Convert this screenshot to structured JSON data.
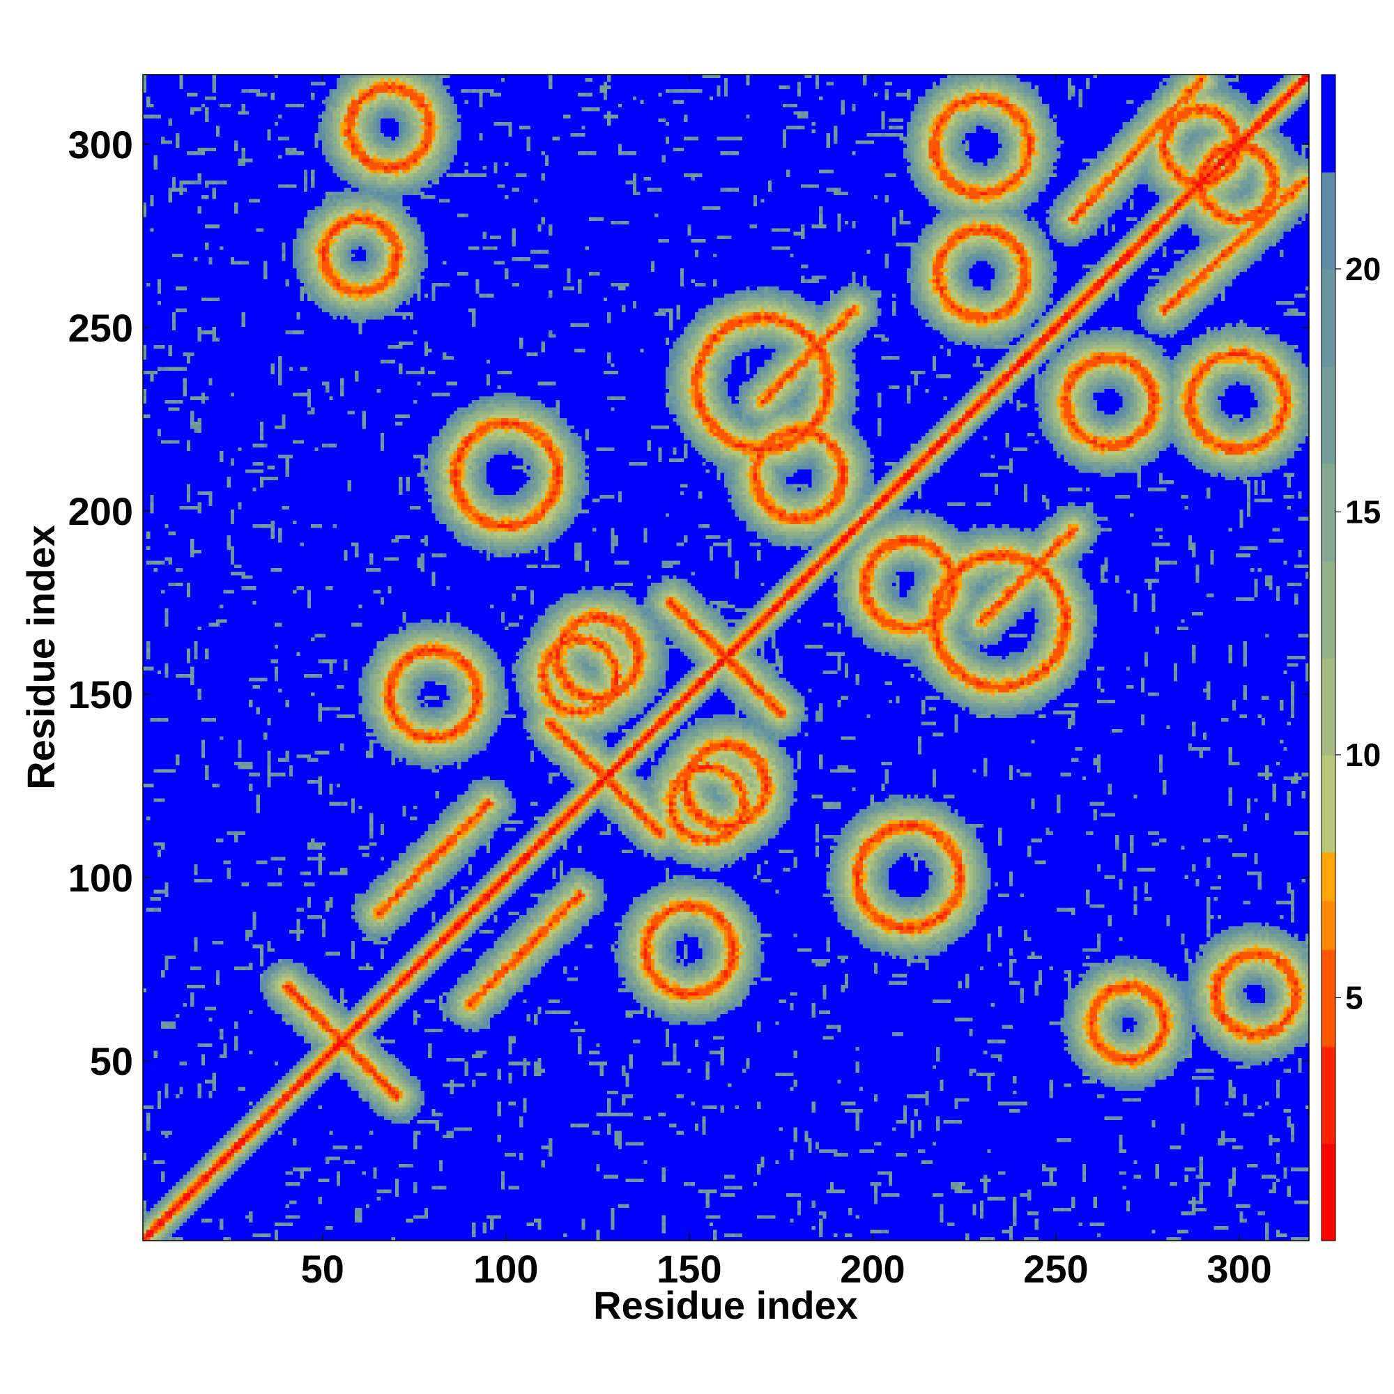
{
  "chart_data": {
    "type": "heatmap",
    "title": "",
    "xlabel": "Residue index",
    "ylabel": "Residue index",
    "xlim": [
      1,
      319
    ],
    "ylim": [
      1,
      319
    ],
    "x_ticks": [
      50,
      100,
      150,
      200,
      250,
      300
    ],
    "y_ticks": [
      50,
      100,
      150,
      200,
      250,
      300
    ],
    "n_residues": 319,
    "colorbar": {
      "ticks": [
        5,
        10,
        15,
        20
      ],
      "range": [
        0,
        24
      ],
      "levels": [
        {
          "max": 2,
          "color": "#ff0000"
        },
        {
          "max": 4,
          "color": "#ff2200"
        },
        {
          "max": 6,
          "color": "#ff5500"
        },
        {
          "max": 7,
          "color": "#ff8800"
        },
        {
          "max": 8,
          "color": "#ffa500"
        },
        {
          "max": 10,
          "color": "#b8c779"
        },
        {
          "max": 12,
          "color": "#a5bc80"
        },
        {
          "max": 14,
          "color": "#94b288"
        },
        {
          "max": 16,
          "color": "#84a890"
        },
        {
          "max": 18,
          "color": "#759e98"
        },
        {
          "max": 20,
          "color": "#6995a0"
        },
        {
          "max": 22,
          "color": "#5d8ca6"
        },
        {
          "max": 24,
          "color": "#0000ff"
        }
      ]
    },
    "contact_features": [
      {
        "kind": "diagonal",
        "from": [
          1,
          1
        ],
        "to": [
          319,
          319
        ]
      },
      {
        "kind": "antidiagonal",
        "from": [
          112,
          142
        ],
        "to": [
          142,
          112
        ]
      },
      {
        "kind": "antidiagonal",
        "from": [
          145,
          175
        ],
        "to": [
          175,
          145
        ]
      },
      {
        "kind": "antidiagonal",
        "from": [
          40,
          70
        ],
        "to": [
          70,
          40
        ]
      },
      {
        "kind": "parallel",
        "from": [
          65,
          90
        ],
        "to": [
          95,
          120
        ]
      },
      {
        "kind": "parallel",
        "from": [
          170,
          230
        ],
        "to": [
          195,
          255
        ]
      },
      {
        "kind": "parallel",
        "from": [
          255,
          280
        ],
        "to": [
          290,
          318
        ]
      },
      {
        "kind": "ring",
        "center": [
          68,
          305
        ],
        "radius": 11
      },
      {
        "kind": "ring",
        "center": [
          305,
          68
        ],
        "radius": 11
      },
      {
        "kind": "ring",
        "center": [
          160,
          125
        ],
        "radius": 11
      },
      {
        "kind": "ring",
        "center": [
          125,
          160
        ],
        "radius": 11
      },
      {
        "kind": "ring",
        "center": [
          120,
          155
        ],
        "radius": 10
      },
      {
        "kind": "ring",
        "center": [
          300,
          290
        ],
        "radius": 10
      },
      {
        "kind": "ring",
        "center": [
          290,
          300
        ],
        "radius": 10
      },
      {
        "kind": "ring",
        "center": [
          235,
          170
        ],
        "radius": 18
      },
      {
        "kind": "ring",
        "center": [
          170,
          235
        ],
        "radius": 18
      },
      {
        "kind": "ring",
        "center": [
          60,
          270
        ],
        "radius": 10
      },
      {
        "kind": "ring",
        "center": [
          270,
          60
        ],
        "radius": 10
      },
      {
        "kind": "ring",
        "center": [
          210,
          180
        ],
        "radius": 12
      },
      {
        "kind": "ring",
        "center": [
          180,
          210
        ],
        "radius": 12
      },
      {
        "kind": "ring",
        "center": [
          265,
          230
        ],
        "radius": 12
      },
      {
        "kind": "ring",
        "center": [
          230,
          265
        ],
        "radius": 12
      },
      {
        "kind": "ring",
        "center": [
          100,
          210
        ],
        "radius": 14
      },
      {
        "kind": "ring",
        "center": [
          210,
          100
        ],
        "radius": 14
      },
      {
        "kind": "ring",
        "center": [
          300,
          230
        ],
        "radius": 13
      },
      {
        "kind": "ring",
        "center": [
          230,
          300
        ],
        "radius": 13
      },
      {
        "kind": "ring",
        "center": [
          80,
          150
        ],
        "radius": 12
      },
      {
        "kind": "ring",
        "center": [
          150,
          80
        ],
        "radius": 12
      }
    ]
  }
}
